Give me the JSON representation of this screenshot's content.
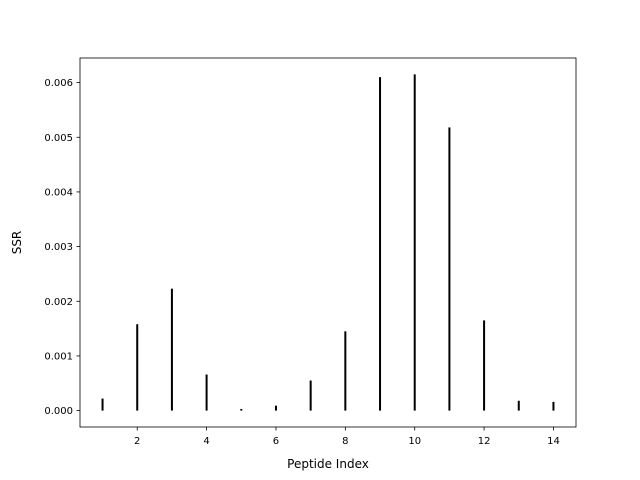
{
  "chart_data": {
    "type": "bar",
    "title": "",
    "xlabel": "Peptide Index",
    "ylabel": "SSR",
    "x": [
      1,
      2,
      3,
      4,
      5,
      6,
      7,
      8,
      9,
      10,
      11,
      12,
      13,
      14
    ],
    "values": [
      0.00022,
      0.00158,
      0.00223,
      0.00066,
      3e-05,
      9e-05,
      0.00055,
      0.00145,
      0.0061,
      0.00615,
      0.00518,
      0.00165,
      0.00018,
      0.00016
    ],
    "xlim": [
      0.35,
      14.65
    ],
    "ylim": [
      -0.0003,
      0.00645
    ],
    "xticks": [
      2,
      4,
      6,
      8,
      10,
      12,
      14
    ],
    "xtick_labels": [
      "2",
      "4",
      "6",
      "8",
      "10",
      "12",
      "14"
    ],
    "yticks": [
      0,
      0.001,
      0.002,
      0.003,
      0.004,
      0.005,
      0.006
    ],
    "ytick_labels": [
      "0.000",
      "0.001",
      "0.002",
      "0.003",
      "0.004",
      "0.005",
      "0.006"
    ],
    "bar_color": "#000000",
    "grid": false,
    "legend": "none"
  }
}
